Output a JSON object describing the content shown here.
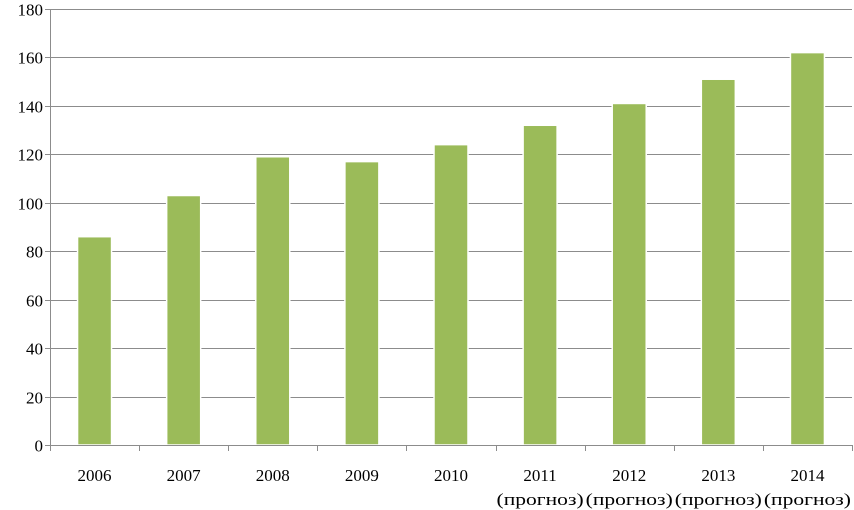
{
  "chart_data": {
    "type": "bar",
    "categories": [
      {
        "label": "2006",
        "sub": ""
      },
      {
        "label": "2007",
        "sub": ""
      },
      {
        "label": "2008",
        "sub": ""
      },
      {
        "label": "2009",
        "sub": ""
      },
      {
        "label": "2010",
        "sub": ""
      },
      {
        "label": "2011",
        "sub": "(прогноз)"
      },
      {
        "label": "2012",
        "sub": "(прогноз)"
      },
      {
        "label": "2013",
        "sub": "(прогноз)"
      },
      {
        "label": "2014",
        "sub": "(прогноз)"
      }
    ],
    "values": [
      86,
      103,
      119,
      117,
      124,
      132,
      141,
      151,
      162
    ],
    "yticks": [
      "0",
      "20",
      "40",
      "60",
      "80",
      "100",
      "120",
      "140",
      "160",
      "180"
    ],
    "ylim": [
      0,
      180
    ],
    "grid": true,
    "legend": "none",
    "bar_color": "#9bbb59"
  }
}
